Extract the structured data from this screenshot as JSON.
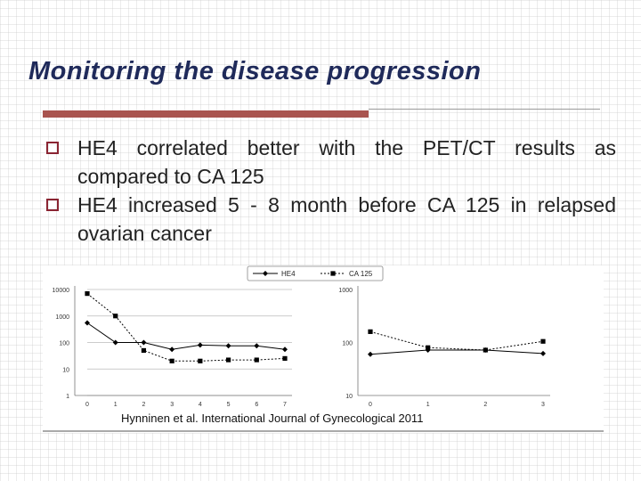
{
  "slide": {
    "title": "Monitoring the disease progression",
    "bullets": [
      "HE4 correlated better with the PET/CT results as compared to CA 125",
      "HE4 increased 5 - 8 month before CA 125 in relapsed ovarian cancer"
    ],
    "citation": "Hynninen et al. International Journal of Gynecological 2011"
  },
  "colors": {
    "title": "#1f2a5a",
    "accent_bar": "#a9544f",
    "bullet_box": "#8a2432",
    "he4_series": "#000000",
    "ca125_series": "#000000"
  },
  "chart_data": [
    {
      "type": "line",
      "title": "",
      "xlabel": "",
      "ylabel": "",
      "y_scale": "log",
      "ylim": [
        1,
        10000
      ],
      "y_ticks": [
        "1",
        "10",
        "100",
        "1000",
        "10000"
      ],
      "x": [
        0,
        1,
        2,
        3,
        4,
        5,
        6,
        7
      ],
      "legend": [
        "HE4",
        "CA 125"
      ],
      "legend_position": "top",
      "grid": true,
      "series": [
        {
          "name": "HE4",
          "marker": "diamond",
          "line": "solid",
          "values": [
            550,
            100,
            100,
            55,
            80,
            75,
            75,
            55
          ]
        },
        {
          "name": "CA 125",
          "marker": "square",
          "line": "dashed",
          "values": [
            7000,
            1000,
            50,
            20,
            20,
            22,
            22,
            25
          ]
        }
      ]
    },
    {
      "type": "line",
      "title": "",
      "xlabel": "",
      "ylabel": "",
      "y_scale": "log",
      "ylim": [
        10,
        1000
      ],
      "y_ticks": [
        "10",
        "100",
        "1000"
      ],
      "x": [
        0,
        1,
        2,
        3
      ],
      "grid": false,
      "series": [
        {
          "name": "HE4",
          "marker": "diamond",
          "line": "solid",
          "values": [
            60,
            72,
            72,
            62
          ]
        },
        {
          "name": "CA 125",
          "marker": "square",
          "line": "dashed",
          "values": [
            160,
            80,
            72,
            105
          ]
        }
      ]
    }
  ]
}
